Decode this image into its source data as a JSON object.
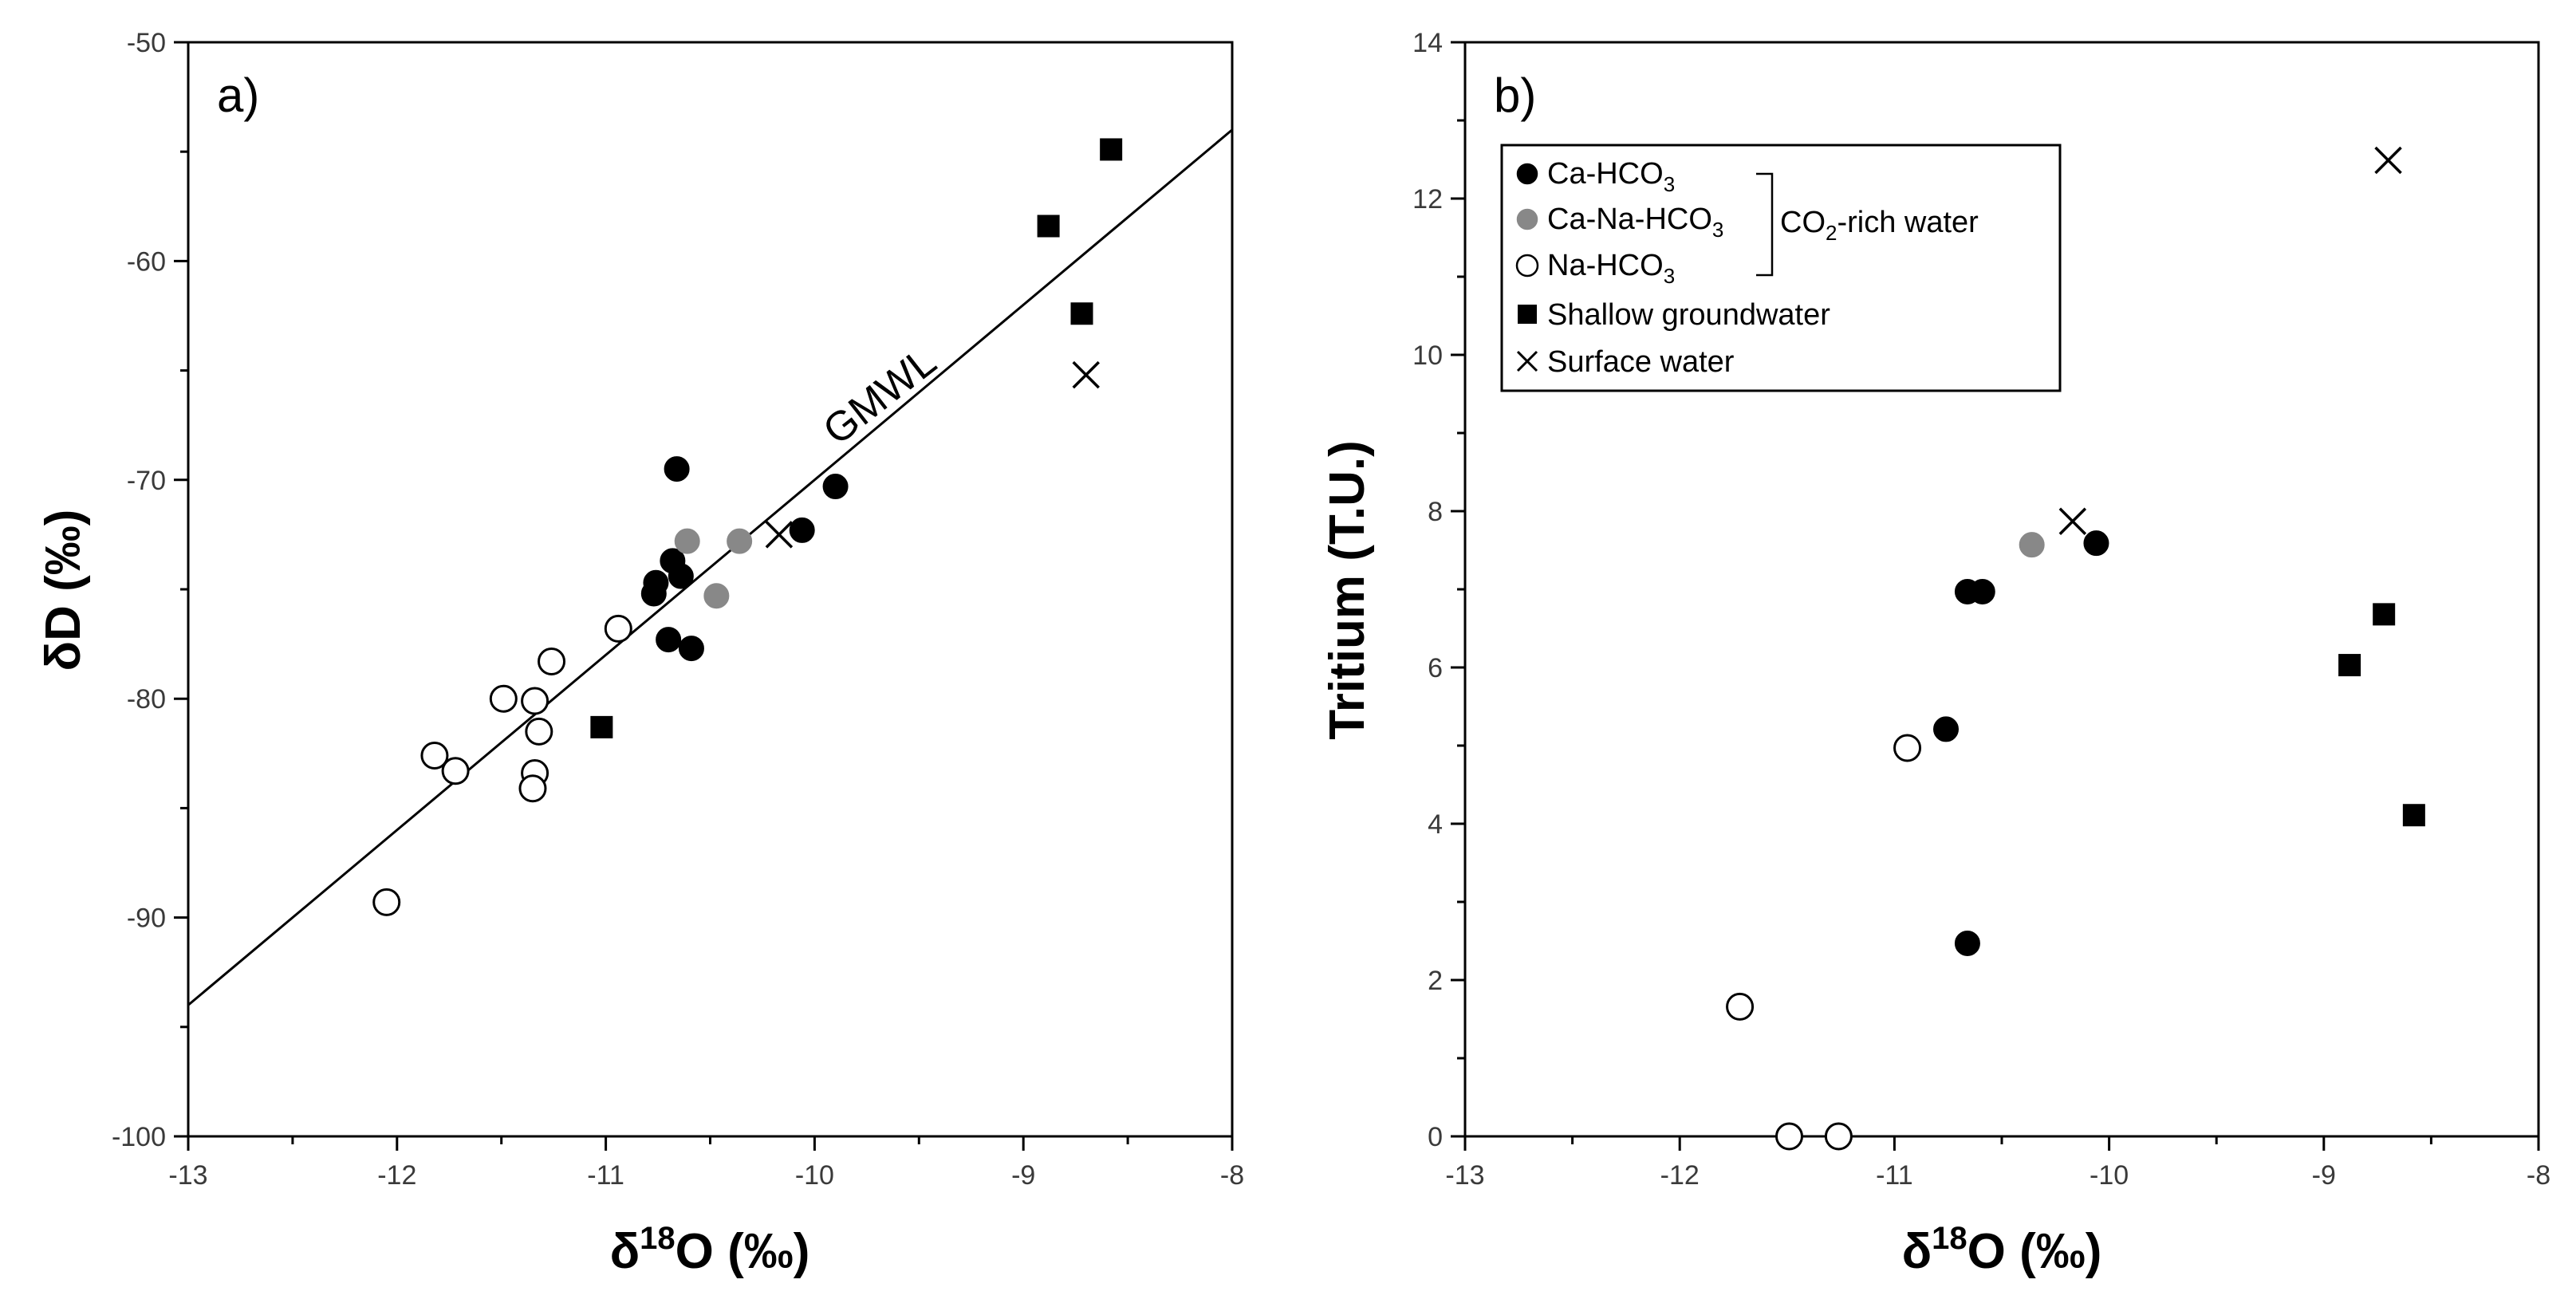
{
  "colors": {
    "black": "#000000",
    "gray": "#888888",
    "white": "#ffffff"
  },
  "chart_data": [
    {
      "panel": "a)",
      "type": "scatter",
      "xlabel": "δ18O (‰)",
      "ylabel": "δD (‰)",
      "xlim": [
        -13,
        -8
      ],
      "ylim": [
        -100,
        -50
      ],
      "xticks": [
        -13,
        -12,
        -11,
        -10,
        -9,
        -8
      ],
      "yticks": [
        -100,
        -90,
        -80,
        -70,
        -60,
        -50
      ],
      "xtick_labels": [
        "-13",
        "-12",
        "-11",
        "-10",
        "-9",
        "-8"
      ],
      "ytick_labels": [
        "-100",
        "-90",
        "-80",
        "-70",
        "-60",
        "-50"
      ],
      "reference_line": {
        "label": "GMWL",
        "slope": 8,
        "intercept": 10,
        "x_range": [
          -13,
          -8
        ]
      },
      "series": [
        {
          "name": "Ca-HCO3",
          "marker": "circle-filled",
          "points": [
            [
              -10.66,
              -69.5
            ],
            [
              -10.68,
              -73.7
            ],
            [
              -10.64,
              -74.4
            ],
            [
              -10.76,
              -74.7
            ],
            [
              -10.77,
              -75.2
            ],
            [
              -10.7,
              -77.3
            ],
            [
              -10.59,
              -77.7
            ],
            [
              -10.06,
              -72.3
            ],
            [
              -9.9,
              -70.3
            ]
          ]
        },
        {
          "name": "Ca-Na-HCO3",
          "marker": "circle-gray",
          "points": [
            [
              -10.61,
              -72.8
            ],
            [
              -10.36,
              -72.8
            ],
            [
              -10.47,
              -75.3
            ]
          ]
        },
        {
          "name": "Na-HCO3",
          "marker": "circle-open",
          "points": [
            [
              -10.94,
              -76.8
            ],
            [
              -11.26,
              -78.3
            ],
            [
              -11.49,
              -80.0
            ],
            [
              -11.34,
              -80.1
            ],
            [
              -11.32,
              -81.5
            ],
            [
              -11.82,
              -82.6
            ],
            [
              -11.72,
              -83.3
            ],
            [
              -11.34,
              -83.4
            ],
            [
              -11.35,
              -84.1
            ],
            [
              -12.05,
              -89.3
            ]
          ]
        },
        {
          "name": "Shallow groundwater",
          "marker": "square",
          "points": [
            [
              -8.58,
              -54.9
            ],
            [
              -8.88,
              -58.4
            ],
            [
              -8.72,
              -62.4
            ],
            [
              -11.02,
              -81.3
            ]
          ]
        },
        {
          "name": "Surface water",
          "marker": "cross",
          "points": [
            [
              -8.7,
              -65.2
            ],
            [
              -10.17,
              -72.5
            ]
          ]
        }
      ]
    },
    {
      "panel": "b)",
      "type": "scatter",
      "xlabel": "δ18O (‰)",
      "ylabel": "Tritium (T.U.)",
      "xlim": [
        -13,
        -8
      ],
      "ylim": [
        0,
        14
      ],
      "xticks": [
        -13,
        -12,
        -11,
        -10,
        -9,
        -8
      ],
      "yticks": [
        0,
        2,
        4,
        6,
        8,
        10,
        12,
        14
      ],
      "xtick_labels": [
        "-13",
        "-12",
        "-11",
        "-10",
        "-9",
        "-8"
      ],
      "ytick_labels": [
        "0",
        "2",
        "4",
        "6",
        "8",
        "10",
        "12",
        "14"
      ],
      "series": [
        {
          "name": "Ca-HCO3",
          "marker": "circle-filled",
          "points": [
            [
              -10.66,
              6.97
            ],
            [
              -10.59,
              6.97
            ],
            [
              -10.06,
              7.59
            ],
            [
              -10.76,
              5.21
            ],
            [
              -10.66,
              2.47
            ]
          ]
        },
        {
          "name": "Ca-Na-HCO3",
          "marker": "circle-gray",
          "points": [
            [
              -10.36,
              7.57
            ]
          ]
        },
        {
          "name": "Na-HCO3",
          "marker": "circle-open",
          "points": [
            [
              -10.94,
              4.97
            ],
            [
              -11.72,
              1.66
            ],
            [
              -11.49,
              0.0
            ],
            [
              -11.26,
              0.0
            ]
          ]
        },
        {
          "name": "Shallow groundwater",
          "marker": "square",
          "points": [
            [
              -8.72,
              6.68
            ],
            [
              -8.88,
              6.03
            ],
            [
              -8.58,
              4.11
            ]
          ]
        },
        {
          "name": "Surface water",
          "marker": "cross",
          "points": [
            [
              -10.17,
              7.87
            ],
            [
              -8.7,
              12.49
            ]
          ]
        }
      ],
      "legend": {
        "position": "top-left",
        "bracket_label": "CO2-rich water",
        "entries": [
          {
            "label": "Ca-HCO3",
            "marker": "circle-filled"
          },
          {
            "label": "Ca-Na-HCO3",
            "marker": "circle-gray"
          },
          {
            "label": "Na-HCO3",
            "marker": "circle-open"
          },
          {
            "label": "Shallow groundwater",
            "marker": "square"
          },
          {
            "label": "Surface water",
            "marker": "cross"
          }
        ]
      }
    }
  ]
}
